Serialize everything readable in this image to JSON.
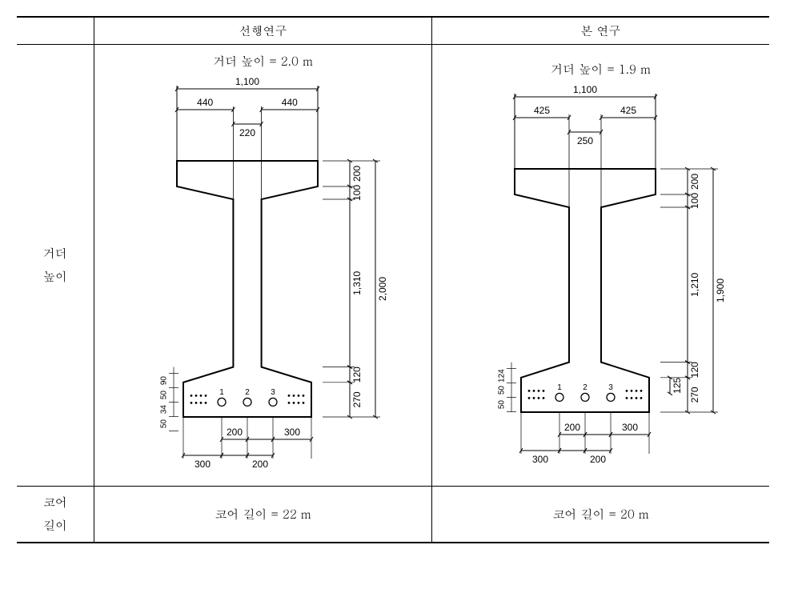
{
  "headers": {
    "blank": "",
    "c1": "선행연구",
    "c2": "본 연구"
  },
  "row1": {
    "label_line1": "거더",
    "label_line2": "높이",
    "c1_title": "거더 높이 = 2.0 m",
    "c2_title": "거더 높이 = 1.9 m"
  },
  "row2": {
    "label_line1": "코어",
    "label_line2": "길이",
    "c1_text": "코어 길이 = 22 m",
    "c2_text": "코어 길이 = 20 m"
  },
  "girderA": {
    "top_width": "1,100",
    "top_sides": "440",
    "top_center": "220",
    "flange_top_h": "200",
    "flange_top_taper": "100",
    "web_h": "1,310",
    "total_h": "2,000",
    "bot_taper": "120",
    "bot_h": "270",
    "bot_dims_a": "300",
    "bot_dims_b": "200",
    "bot_dims_c": "200",
    "bot_dims_d": "300",
    "left_stack": [
      "90",
      "50",
      "34",
      "50"
    ],
    "holes": [
      "1",
      "2",
      "3"
    ],
    "colors": {
      "stroke": "#000000",
      "fill": "#ffffff"
    }
  },
  "girderB": {
    "top_width": "1,100",
    "top_sides": "425",
    "top_center": "250",
    "flange_top_h": "200",
    "flange_top_taper": "100",
    "web_h": "1,210",
    "total_h": "1,900",
    "bot_taper": "120",
    "bot_h": "270",
    "bot_mid": "125",
    "bot_dims_a": "300",
    "bot_dims_b": "200",
    "bot_dims_c": "200",
    "bot_dims_d": "300",
    "left_stack": [
      "124",
      "50",
      "50"
    ],
    "holes": [
      "1",
      "2",
      "3"
    ],
    "colors": {
      "stroke": "#000000",
      "fill": "#ffffff"
    }
  }
}
